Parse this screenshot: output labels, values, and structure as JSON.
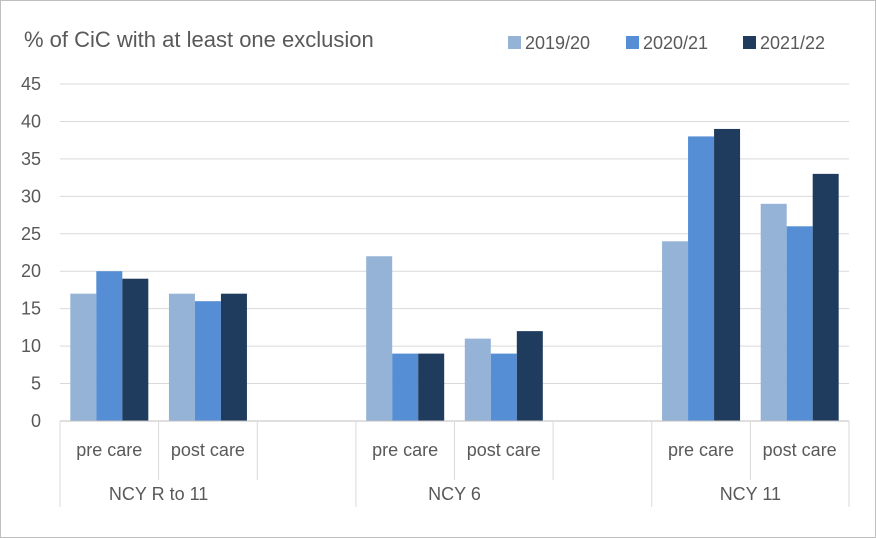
{
  "chart_data": {
    "type": "bar",
    "title": "% of CiC with at least one exclusion",
    "xlabel": "",
    "ylabel": "",
    "ylim": [
      0,
      45
    ],
    "yticks": [
      0,
      5,
      10,
      15,
      20,
      25,
      30,
      35,
      40,
      45
    ],
    "grid": true,
    "legend_position": "top-right",
    "groups": [
      {
        "label": "NCY R to 11",
        "categories": [
          "pre care",
          "post care"
        ]
      },
      {
        "label": "NCY 6",
        "categories": [
          "pre care",
          "post care"
        ]
      },
      {
        "label": "NCY 11",
        "categories": [
          "pre care",
          "post care"
        ]
      }
    ],
    "categories": [
      "NCY R to 11 pre care",
      "NCY R to 11 post care",
      "NCY 6 pre care",
      "NCY 6 post care",
      "NCY 11 pre care",
      "NCY 11 post care"
    ],
    "series": [
      {
        "name": "2019/20",
        "color": "#95b3d7",
        "values": [
          17,
          17,
          22,
          11,
          24,
          29
        ]
      },
      {
        "name": "2020/21",
        "color": "#558ed5",
        "values": [
          20,
          16,
          9,
          9,
          38,
          26
        ]
      },
      {
        "name": "2021/22",
        "color": "#1f3b5e",
        "values": [
          19,
          17,
          9,
          12,
          39,
          33
        ]
      }
    ]
  }
}
